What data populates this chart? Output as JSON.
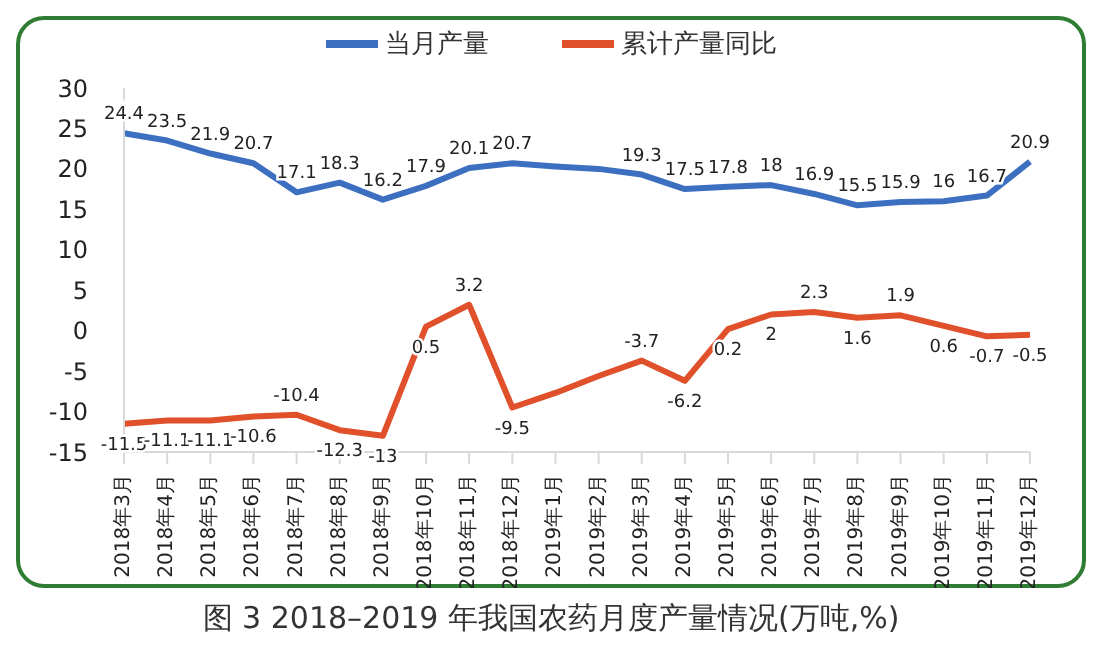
{
  "chart_data": {
    "type": "line",
    "title": "图 3 2018–2019 年我国农药月度产量情况(万吨,%)",
    "categories": [
      "2018年3月",
      "2018年4月",
      "2018年5月",
      "2018年6月",
      "2018年7月",
      "2018年8月",
      "2018年9月",
      "2018年10月",
      "2018年11月",
      "2018年12月",
      "2019年1月",
      "2019年2月",
      "2019年3月",
      "2019年4月",
      "2019年5月",
      "2019年6月",
      "2019年7月",
      "2019年8月",
      "2019年9月",
      "2019年10月",
      "2019年11月",
      "2019年12月"
    ],
    "series": [
      {
        "name": "当月产量",
        "color": "#3d6fc0",
        "values": [
          24.4,
          23.5,
          21.9,
          20.7,
          17.1,
          18.3,
          16.2,
          17.9,
          20.1,
          20.7,
          20.3,
          20.0,
          19.3,
          17.5,
          17.8,
          18,
          16.9,
          15.5,
          15.9,
          16,
          16.7,
          20.9
        ],
        "value_labels": [
          "24.4",
          "23.5",
          "21.9",
          "20.7",
          "17.1",
          "18.3",
          "16.2",
          "17.9",
          "20.1",
          "20.7",
          null,
          null,
          "19.3",
          "17.5",
          "17.8",
          "18",
          "16.9",
          "15.5",
          "15.9",
          "16",
          "16.7",
          "20.9"
        ]
      },
      {
        "name": "累计产量同比",
        "color": "#e0502a",
        "values": [
          -11.5,
          -11.1,
          -11.1,
          -10.6,
          -10.4,
          -12.3,
          -13,
          0.5,
          3.2,
          -9.5,
          -7.7,
          -5.6,
          -3.7,
          -6.2,
          0.2,
          2,
          2.3,
          1.6,
          1.9,
          0.6,
          -0.7,
          -0.5
        ],
        "value_labels": [
          "-11.5",
          "-11.1",
          "-11.1",
          "-10.6",
          "-10.4",
          "-12.3",
          "-13",
          "0.5",
          "3.2",
          "-9.5",
          null,
          null,
          "-3.7",
          "-6.2",
          "0.2",
          "2",
          "2.3",
          "1.6",
          "1.9",
          "0.6",
          "-0.7",
          "-0.5"
        ]
      }
    ],
    "ylim": [
      -15,
      30
    ],
    "yticks": [
      -15,
      -10,
      -5,
      0,
      5,
      10,
      15,
      20,
      25,
      30
    ],
    "legend": "top"
  }
}
